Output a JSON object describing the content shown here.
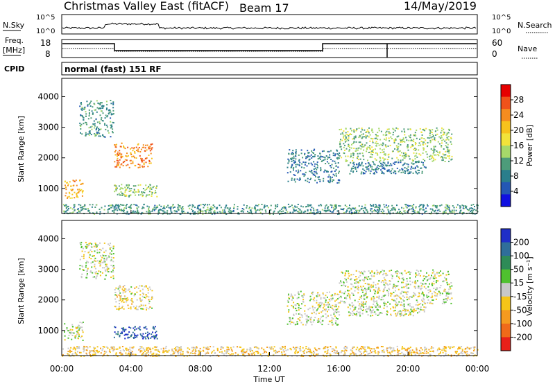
{
  "header": {
    "radar": "Christmas Valley East (fitACF)",
    "beam": "Beam 17",
    "date": "14/May/2019"
  },
  "panels": {
    "nsky_label": "N.Sky",
    "nsky_ticks": [
      "10^5",
      "10^0"
    ],
    "nsearch_label": "N.Search",
    "nsearch_ticks": [
      "10^5",
      "10^0"
    ],
    "freq_label_line1": "Freq.",
    "freq_label_line2": "[MHz]",
    "freq_ticks": [
      "18",
      "8"
    ],
    "nave_label": "Nave",
    "nave_ticks": [
      "60",
      "0"
    ],
    "cpid_label": "CPID",
    "cpid_text": "normal (fast) 151 RF"
  },
  "axes": {
    "xlabel": "Time UT",
    "xticks": [
      "00:00",
      "04:00",
      "08:00",
      "12:00",
      "16:00",
      "20:00",
      "00:00"
    ],
    "ylabel": "Slant Range [km]",
    "yticks": [
      "4000",
      "3000",
      "2000",
      "1000"
    ]
  },
  "colorbars": {
    "power": {
      "label": "Power [dB]",
      "ticks": [
        "28",
        "24",
        "20",
        "16",
        "12",
        "8",
        "4"
      ],
      "colors": [
        "#e60000",
        "#f0521a",
        "#f58c1f",
        "#f7c21c",
        "#f2e33a",
        "#a6d96a",
        "#4d9c7a",
        "#2a7e8c",
        "#2457b5",
        "#1010e0"
      ]
    },
    "velocity": {
      "label": "Velocity [m s⁻¹]",
      "ticks": [
        "200",
        "100",
        "50",
        "15",
        "-15",
        "-50",
        "-100",
        "-200"
      ],
      "colors": [
        "#1f2fc8",
        "#2f6e9a",
        "#2e8b57",
        "#4fc12f",
        "#c8c8c8",
        "#f5c518",
        "#f59a1f",
        "#f06a1a",
        "#e8201a"
      ]
    }
  },
  "chart_data": [
    {
      "type": "heatmap",
      "title": "Power",
      "xlabel": "Time UT",
      "ylabel": "Slant Range [km]",
      "xlim": [
        "00:00",
        "24:00"
      ],
      "ylim": [
        180,
        4600
      ],
      "colorbar": {
        "label": "Power [dB]",
        "range": [
          0,
          32
        ]
      },
      "regions": [
        {
          "t_start": 0.1,
          "t_end": 1.2,
          "r_min": 700,
          "r_max": 1300,
          "value": 22
        },
        {
          "t_start": 1.0,
          "t_end": 3.0,
          "r_min": 2700,
          "r_max": 3900,
          "value": 10
        },
        {
          "t_start": 3.0,
          "t_end": 5.2,
          "r_min": 1700,
          "r_max": 2500,
          "value": 24
        },
        {
          "t_start": 3.0,
          "t_end": 5.5,
          "r_min": 750,
          "r_max": 1150,
          "value": 14
        },
        {
          "t_start": 13.0,
          "t_end": 16.0,
          "r_min": 1200,
          "r_max": 2300,
          "value": 8
        },
        {
          "t_start": 16.0,
          "t_end": 22.5,
          "r_min": 1900,
          "r_max": 3000,
          "value": 14
        },
        {
          "t_start": 16.5,
          "t_end": 21.0,
          "r_min": 1500,
          "r_max": 1900,
          "value": 8
        },
        {
          "t_start": 0.0,
          "t_end": 24.0,
          "r_min": 180,
          "r_max": 500,
          "value": 10
        }
      ]
    },
    {
      "type": "heatmap",
      "title": "Velocity",
      "xlabel": "Time UT",
      "ylabel": "Slant Range [km]",
      "xlim": [
        "00:00",
        "24:00"
      ],
      "ylim": [
        180,
        4600
      ],
      "colorbar": {
        "label": "Velocity [m s⁻¹]",
        "range": [
          -200,
          200
        ]
      },
      "regions": [
        {
          "t_start": 0.1,
          "t_end": 1.2,
          "r_min": 700,
          "r_max": 1300,
          "value": 0
        },
        {
          "t_start": 1.0,
          "t_end": 3.0,
          "r_min": 2700,
          "r_max": 3900,
          "value": 0
        },
        {
          "t_start": 3.0,
          "t_end": 5.2,
          "r_min": 1700,
          "r_max": 2500,
          "value": -20
        },
        {
          "t_start": 3.0,
          "t_end": 5.5,
          "r_min": 750,
          "r_max": 1150,
          "value": 150
        },
        {
          "t_start": 13.0,
          "t_end": 16.0,
          "r_min": 1200,
          "r_max": 2300,
          "value": 0
        },
        {
          "t_start": 16.0,
          "t_end": 22.5,
          "r_min": 1900,
          "r_max": 3000,
          "value": 0
        },
        {
          "t_start": 16.5,
          "t_end": 21.0,
          "r_min": 1500,
          "r_max": 1900,
          "value": 0
        },
        {
          "t_start": 0.0,
          "t_end": 24.0,
          "r_min": 180,
          "r_max": 500,
          "value": -40
        }
      ]
    }
  ]
}
